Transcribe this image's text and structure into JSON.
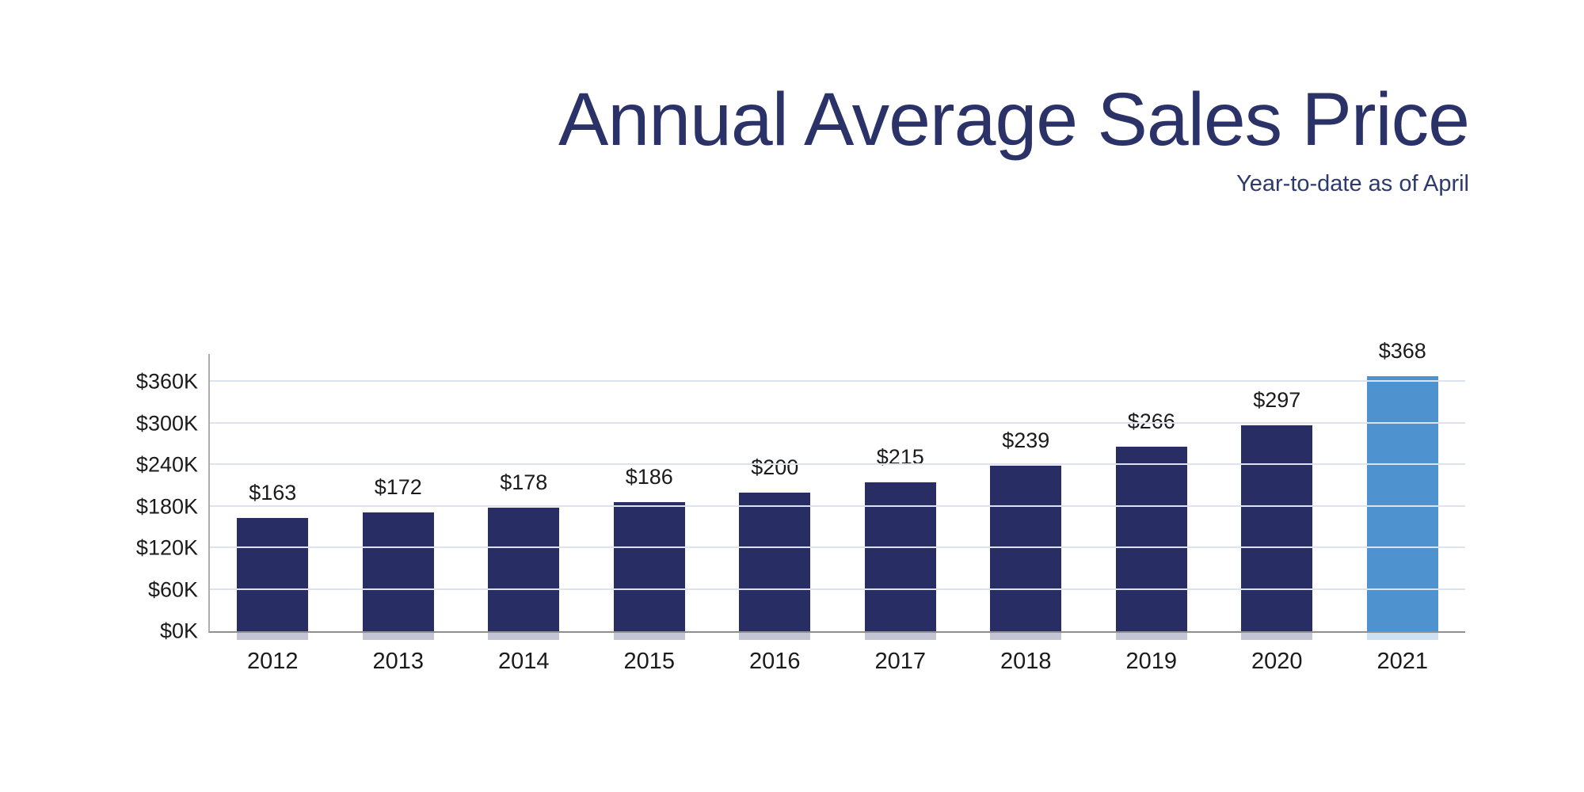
{
  "header": {
    "title": "Annual Average Sales Price",
    "subtitle": "Year-to-date as of April"
  },
  "chart_data": {
    "type": "bar",
    "title": "Annual Average Sales Price",
    "subtitle": "Year-to-date as of April",
    "categories": [
      "2012",
      "2013",
      "2014",
      "2015",
      "2016",
      "2017",
      "2018",
      "2019",
      "2020",
      "2021"
    ],
    "values": [
      163,
      172,
      178,
      186,
      200,
      215,
      239,
      266,
      297,
      368
    ],
    "bar_labels": [
      "$163",
      "$172",
      "$178",
      "$186",
      "$200",
      "$215",
      "$239",
      "$266",
      "$297",
      "$368"
    ],
    "highlight_index": 9,
    "ylim": [
      0,
      400
    ],
    "yticks": [
      0,
      60,
      120,
      180,
      240,
      300,
      360
    ],
    "ytick_labels": [
      "$0K",
      "$60K",
      "$120K",
      "$180K",
      "$240K",
      "$300K",
      "$360K"
    ],
    "grid": "on",
    "legend": "none",
    "xlabel": "",
    "ylabel": "",
    "colors": {
      "bar": "#282D64",
      "highlight": "#4E92CF",
      "title": "#2A3268",
      "subtitle": "#2E3A6E",
      "gridline": "#DCE3EF",
      "axis": "#9A9A9A",
      "text": "#1B1B1B"
    }
  }
}
